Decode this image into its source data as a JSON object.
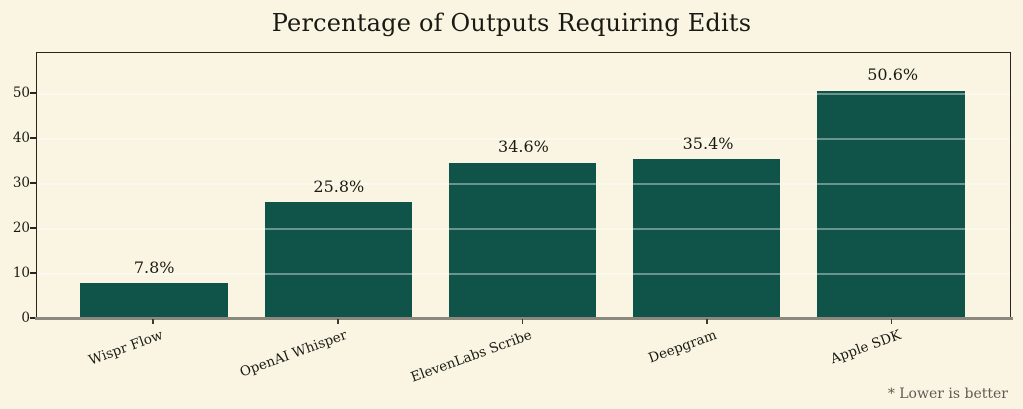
{
  "chart_data": {
    "type": "bar",
    "title": "Percentage of Outputs Requiring Edits",
    "categories": [
      "Wispr Flow",
      "OpenAI Whisper",
      "ElevenLabs Scribe",
      "Deepgram",
      "Apple SDK"
    ],
    "values": [
      7.8,
      25.8,
      34.6,
      35.4,
      50.6
    ],
    "value_labels": [
      "7.8%",
      "25.8%",
      "34.6%",
      "35.4%",
      "50.6%"
    ],
    "xlabel": "",
    "ylabel": "",
    "ylim": [
      0,
      59.1
    ],
    "yticks": [
      0,
      10,
      20,
      30,
      40,
      50
    ],
    "grid": true,
    "legend": false,
    "annotation": "* Lower is better",
    "colors": {
      "bar": "#0F5349",
      "background": "#F9F5E2",
      "grid": "rgba(255,255,255,0.38)",
      "text": "#1a1a14",
      "footnote": "#5d5c53",
      "axis_bottom": "#8B897D",
      "spine": "#26261f"
    }
  }
}
